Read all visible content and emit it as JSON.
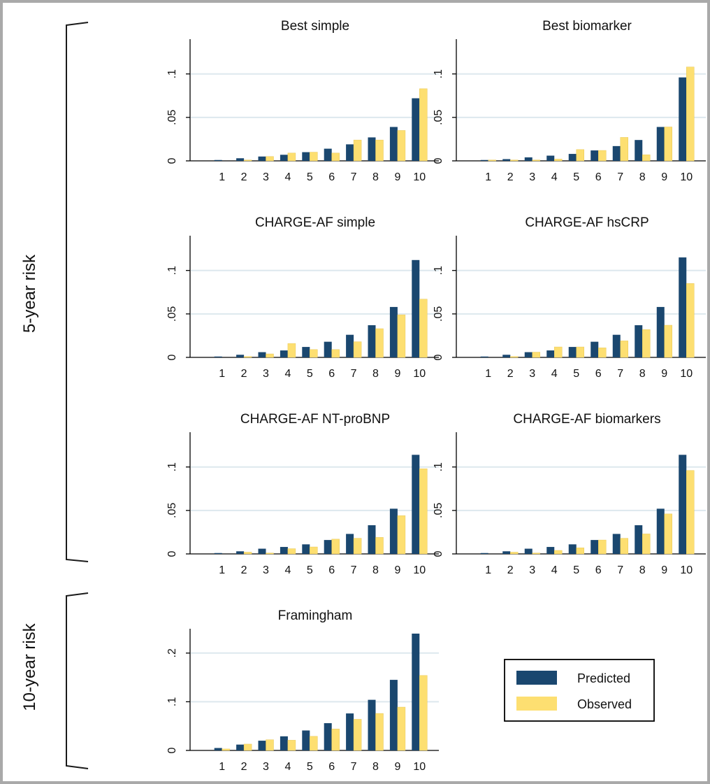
{
  "groups": {
    "five_year": "5-year risk",
    "ten_year": "10-year risk"
  },
  "legend": {
    "predicted": "Predicted",
    "observed": "Observed"
  },
  "colors": {
    "predicted": "#1a476f",
    "observed": "#fddf71",
    "grid": "#dde8ee"
  },
  "chart_data": [
    {
      "type": "bar",
      "title": "Best simple",
      "categories": [
        "1",
        "2",
        "3",
        "4",
        "5",
        "6",
        "7",
        "8",
        "9",
        "10"
      ],
      "ylim": [
        0,
        0.14
      ],
      "yticks": [
        0,
        0.05,
        0.1
      ],
      "ytick_labels": [
        "0",
        ".05",
        ".1"
      ],
      "series": [
        {
          "name": "Predicted",
          "values": [
            0.001,
            0.003,
            0.005,
            0.007,
            0.01,
            0.014,
            0.019,
            0.027,
            0.039,
            0.072
          ]
        },
        {
          "name": "Observed",
          "values": [
            0.0,
            0.001,
            0.005,
            0.009,
            0.01,
            0.009,
            0.024,
            0.024,
            0.035,
            0.083
          ]
        }
      ]
    },
    {
      "type": "bar",
      "title": "Best biomarker",
      "categories": [
        "1",
        "2",
        "3",
        "4",
        "5",
        "6",
        "7",
        "8",
        "9",
        "10"
      ],
      "ylim": [
        0,
        0.14
      ],
      "yticks": [
        0,
        0.05,
        0.1
      ],
      "ytick_labels": [
        "0",
        ".05",
        ".1"
      ],
      "series": [
        {
          "name": "Predicted",
          "values": [
            0.001,
            0.002,
            0.004,
            0.006,
            0.008,
            0.012,
            0.017,
            0.024,
            0.039,
            0.096
          ]
        },
        {
          "name": "Observed",
          "values": [
            0.001,
            0.001,
            0.001,
            0.002,
            0.013,
            0.012,
            0.027,
            0.007,
            0.039,
            0.108
          ]
        }
      ]
    },
    {
      "type": "bar",
      "title": "CHARGE-AF simple",
      "categories": [
        "1",
        "2",
        "3",
        "4",
        "5",
        "6",
        "7",
        "8",
        "9",
        "10"
      ],
      "ylim": [
        0,
        0.14
      ],
      "yticks": [
        0,
        0.05,
        0.1
      ],
      "ytick_labels": [
        "0",
        ".05",
        ".1"
      ],
      "series": [
        {
          "name": "Predicted",
          "values": [
            0.001,
            0.003,
            0.006,
            0.008,
            0.012,
            0.018,
            0.026,
            0.037,
            0.058,
            0.112
          ]
        },
        {
          "name": "Observed",
          "values": [
            0.0,
            0.001,
            0.004,
            0.016,
            0.009,
            0.009,
            0.018,
            0.033,
            0.049,
            0.067
          ]
        }
      ]
    },
    {
      "type": "bar",
      "title": "CHARGE-AF hsCRP",
      "categories": [
        "1",
        "2",
        "3",
        "4",
        "5",
        "6",
        "7",
        "8",
        "9",
        "10"
      ],
      "ylim": [
        0,
        0.14
      ],
      "yticks": [
        0,
        0.05,
        0.1
      ],
      "ytick_labels": [
        "0",
        ".05",
        ".1"
      ],
      "series": [
        {
          "name": "Predicted",
          "values": [
            0.001,
            0.003,
            0.006,
            0.008,
            0.012,
            0.018,
            0.026,
            0.037,
            0.058,
            0.115
          ]
        },
        {
          "name": "Observed",
          "values": [
            0.0,
            0.001,
            0.006,
            0.012,
            0.012,
            0.011,
            0.019,
            0.032,
            0.037,
            0.085
          ]
        }
      ]
    },
    {
      "type": "bar",
      "title": "CHARGE-AF NT-proBNP",
      "categories": [
        "1",
        "2",
        "3",
        "4",
        "5",
        "6",
        "7",
        "8",
        "9",
        "10"
      ],
      "ylim": [
        0,
        0.14
      ],
      "yticks": [
        0,
        0.05,
        0.1
      ],
      "ytick_labels": [
        "0",
        ".05",
        ".1"
      ],
      "series": [
        {
          "name": "Predicted",
          "values": [
            0.001,
            0.003,
            0.006,
            0.008,
            0.011,
            0.016,
            0.023,
            0.033,
            0.052,
            0.114
          ]
        },
        {
          "name": "Observed",
          "values": [
            0.0,
            0.002,
            0.001,
            0.006,
            0.008,
            0.017,
            0.018,
            0.019,
            0.044,
            0.098
          ]
        }
      ]
    },
    {
      "type": "bar",
      "title": "CHARGE-AF biomarkers",
      "categories": [
        "1",
        "2",
        "3",
        "4",
        "5",
        "6",
        "7",
        "8",
        "9",
        "10"
      ],
      "ylim": [
        0,
        0.14
      ],
      "yticks": [
        0,
        0.05,
        0.1
      ],
      "ytick_labels": [
        "0",
        ".05",
        ".1"
      ],
      "series": [
        {
          "name": "Predicted",
          "values": [
            0.001,
            0.003,
            0.006,
            0.008,
            0.011,
            0.016,
            0.023,
            0.033,
            0.052,
            0.114
          ]
        },
        {
          "name": "Observed",
          "values": [
            0.0,
            0.002,
            0.001,
            0.004,
            0.007,
            0.016,
            0.018,
            0.023,
            0.046,
            0.096
          ]
        }
      ]
    },
    {
      "type": "bar",
      "title": "Framingham",
      "categories": [
        "1",
        "2",
        "3",
        "4",
        "5",
        "6",
        "7",
        "8",
        "9",
        "10"
      ],
      "ylim": [
        0,
        0.25
      ],
      "yticks": [
        0,
        0.1,
        0.2
      ],
      "ytick_labels": [
        "0",
        ".1",
        ".2"
      ],
      "series": [
        {
          "name": "Predicted",
          "values": [
            0.005,
            0.012,
            0.02,
            0.029,
            0.041,
            0.056,
            0.076,
            0.104,
            0.145,
            0.24
          ]
        },
        {
          "name": "Observed",
          "values": [
            0.003,
            0.013,
            0.022,
            0.021,
            0.029,
            0.044,
            0.064,
            0.076,
            0.089,
            0.154
          ]
        }
      ]
    }
  ]
}
